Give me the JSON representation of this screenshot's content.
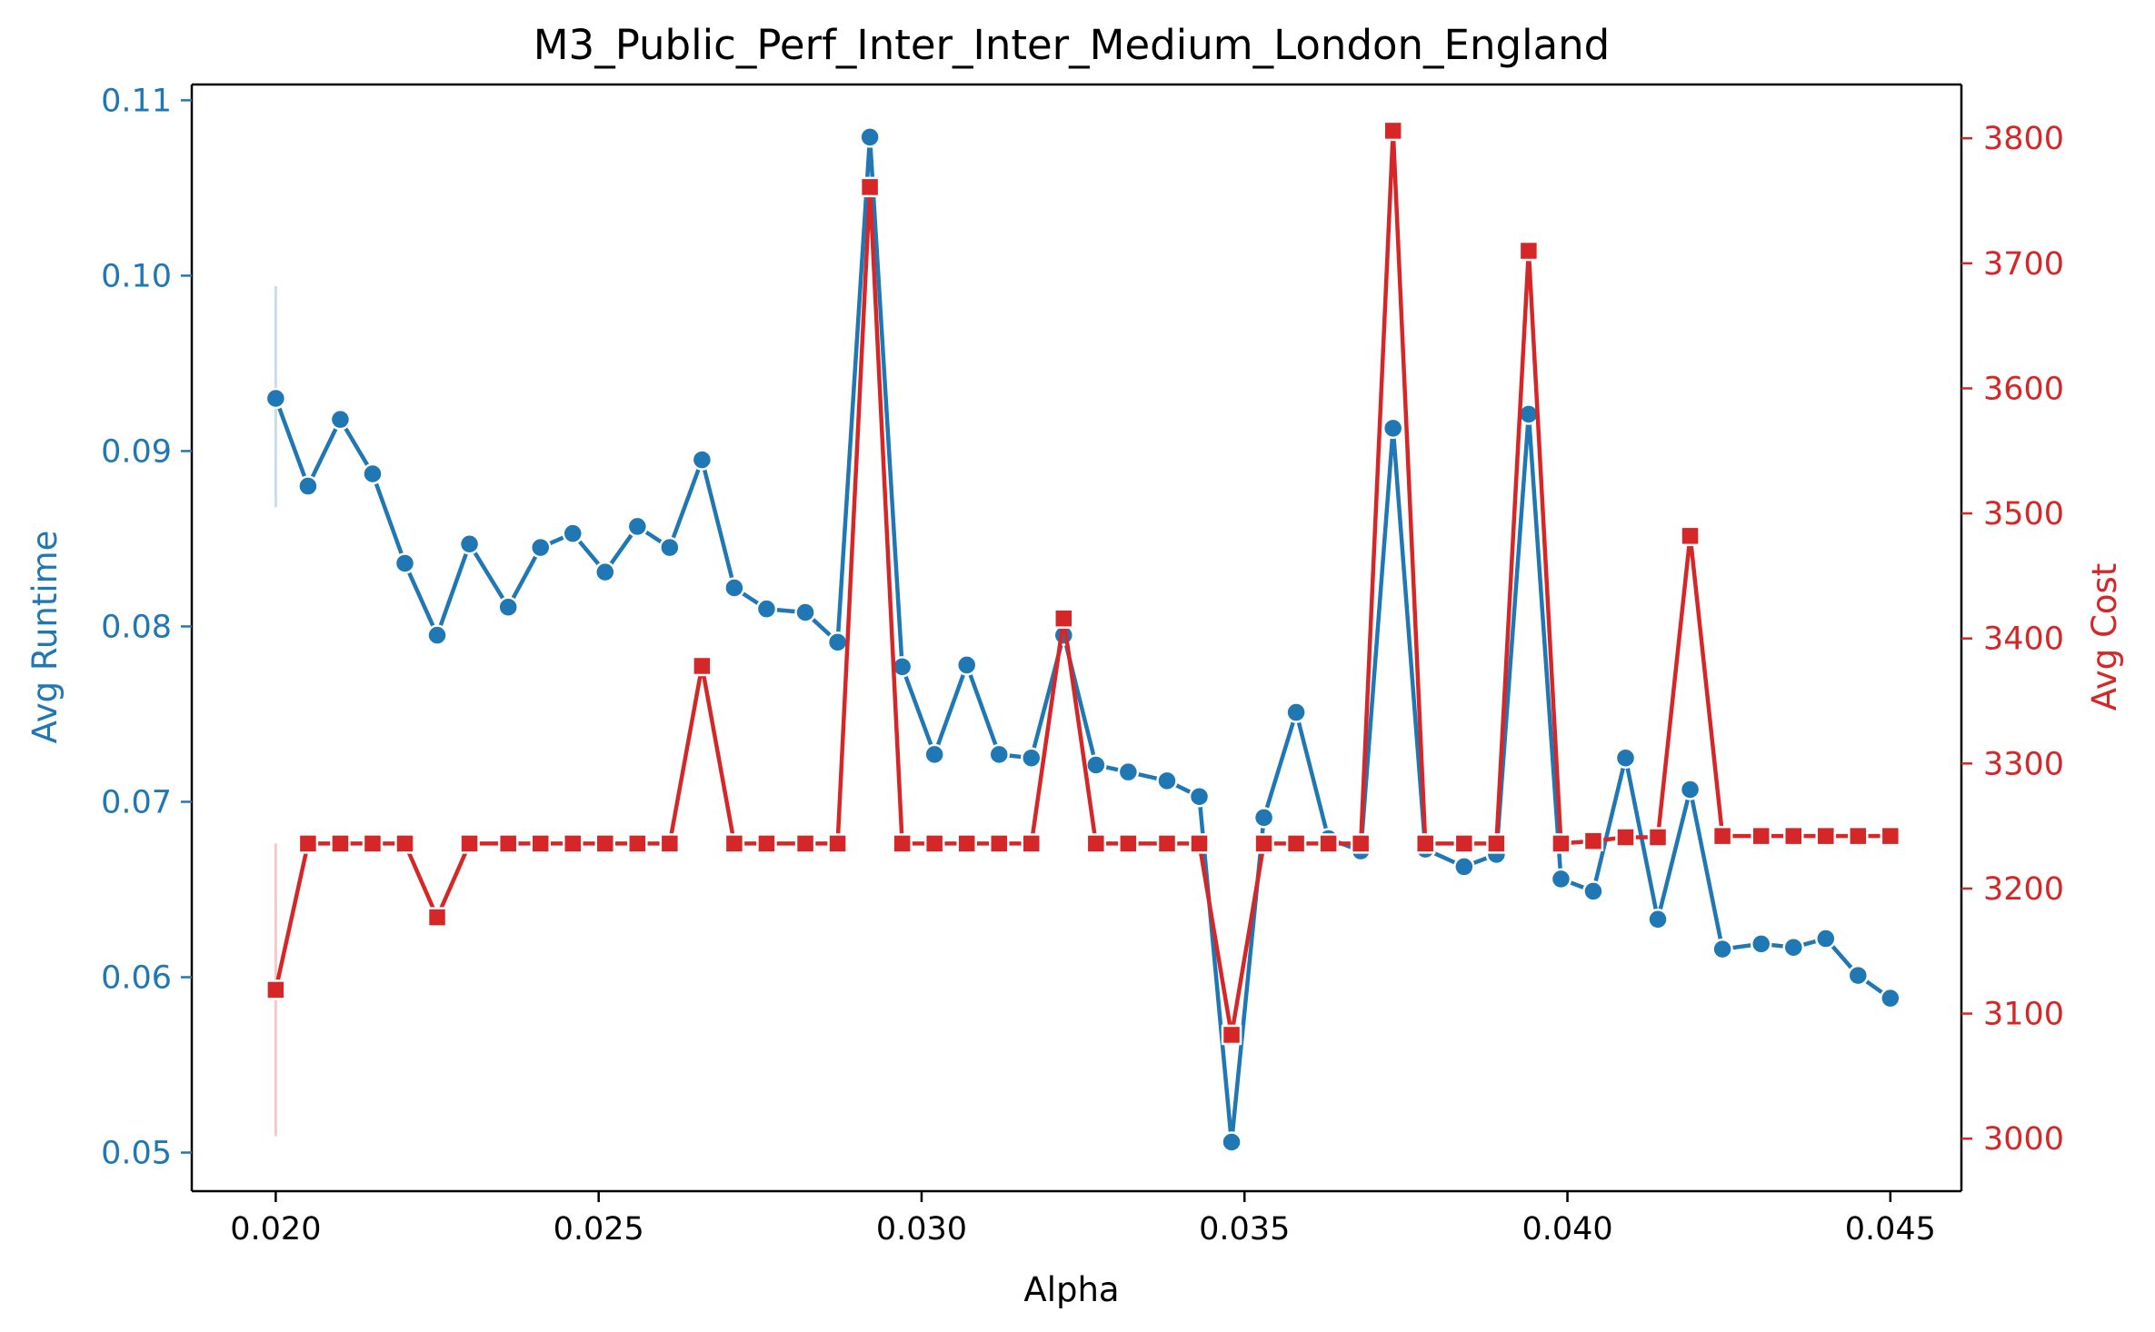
{
  "chart_data": {
    "type": "line",
    "title": "M3_Public_Perf_Inter_Inter_Medium_London_England",
    "xlabel": "Alpha",
    "ylabel_left": "Avg Runtime",
    "ylabel_right": "Avg Cost",
    "xlim": [
      0.0187,
      0.0461
    ],
    "ylim_left": [
      0.0478,
      0.1109
    ],
    "ylim_right": [
      2958,
      3843
    ],
    "x_ticks": [
      "0.020",
      "0.025",
      "0.030",
      "0.035",
      "0.040",
      "0.045"
    ],
    "x_tick_values": [
      0.02,
      0.025,
      0.03,
      0.035,
      0.04,
      0.045
    ],
    "y_ticks_left": [
      "0.05",
      "0.06",
      "0.07",
      "0.08",
      "0.09",
      "0.10",
      "0.11"
    ],
    "y_tick_values_left": [
      0.05,
      0.06,
      0.07,
      0.08,
      0.09,
      0.1,
      0.11
    ],
    "y_ticks_right": [
      "3000",
      "3100",
      "3200",
      "3300",
      "3400",
      "3500",
      "3600",
      "3700",
      "3800"
    ],
    "y_tick_values_right": [
      3000,
      3100,
      3200,
      3300,
      3400,
      3500,
      3600,
      3700,
      3800
    ],
    "colors": {
      "runtime": "#1f77b4",
      "cost": "#d62728",
      "axis": "#000000"
    },
    "x": [
      0.02,
      0.0205,
      0.021,
      0.0215,
      0.022,
      0.0225,
      0.023,
      0.0236,
      0.0241,
      0.0246,
      0.0251,
      0.0256,
      0.0261,
      0.0266,
      0.0271,
      0.0276,
      0.0282,
      0.0287,
      0.0292,
      0.0297,
      0.0302,
      0.0307,
      0.0312,
      0.0317,
      0.0322,
      0.0327,
      0.0332,
      0.0338,
      0.0343,
      0.0348,
      0.0353,
      0.0358,
      0.0363,
      0.0368,
      0.0373,
      0.0378,
      0.0384,
      0.0389,
      0.0394,
      0.0399,
      0.0404,
      0.0409,
      0.0414,
      0.0419,
      0.0424,
      0.043,
      0.0435,
      0.044,
      0.0445,
      0.045
    ],
    "series": [
      {
        "name": "Avg Runtime",
        "axis": "left",
        "marker": "circle",
        "values": [
          0.093,
          0.088,
          0.0918,
          0.0887,
          0.0836,
          0.0795,
          0.0847,
          0.0811,
          0.0845,
          0.0853,
          0.0831,
          0.0857,
          0.0845,
          0.0895,
          0.0822,
          0.081,
          0.0808,
          0.0791,
          0.1079,
          0.0777,
          0.0727,
          0.0778,
          0.0727,
          0.0725,
          0.0795,
          0.0721,
          0.0717,
          0.0712,
          0.0703,
          0.0506,
          0.0691,
          0.0751,
          0.0679,
          0.0672,
          0.0913,
          0.0673,
          0.0663,
          0.067,
          0.0921,
          0.0656,
          0.0649,
          0.0725,
          0.0633,
          0.0707,
          0.0616,
          0.0619,
          0.0617,
          0.0622,
          0.0601,
          0.0588
        ],
        "error_bar": {
          "x": 0.02,
          "low": 0.0868,
          "high": 0.0994
        }
      },
      {
        "name": "Avg Cost",
        "axis": "right",
        "marker": "square",
        "values": [
          3119,
          3236,
          3236,
          3236,
          3236,
          3177,
          3236,
          3236,
          3236,
          3236,
          3236,
          3236,
          3236,
          3378,
          3236,
          3236,
          3236,
          3236,
          3761,
          3236,
          3236,
          3236,
          3236,
          3236,
          3416,
          3236,
          3236,
          3236,
          3236,
          3083,
          3236,
          3236,
          3236,
          3236,
          3806,
          3236,
          3236,
          3236,
          3710,
          3236,
          3238,
          3241,
          3241,
          3482,
          3242,
          3242,
          3242,
          3242,
          3242,
          3242
        ],
        "error_bar": {
          "x": 0.02,
          "low": 3002,
          "high": 3236
        }
      }
    ]
  }
}
